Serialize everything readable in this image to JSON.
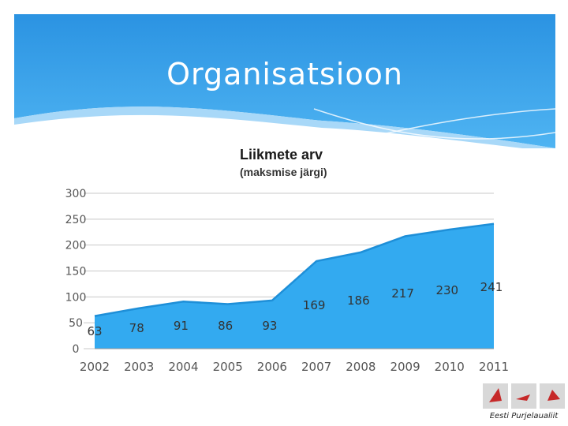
{
  "slide": {
    "title": "Organisatsioon"
  },
  "chart_data": {
    "type": "area",
    "title": "Liikmete arv",
    "subtitle": "(maksmise järgi)",
    "categories": [
      "2002",
      "2003",
      "2004",
      "2005",
      "2006",
      "2007",
      "2008",
      "2009",
      "2010",
      "2011"
    ],
    "values": [
      63,
      78,
      91,
      86,
      93,
      169,
      186,
      217,
      230,
      241
    ],
    "data_labels": [
      "63",
      "78",
      "91",
      "86",
      "93",
      "169",
      "186",
      "217",
      "230",
      "241"
    ],
    "y_ticks": [
      0,
      50,
      100,
      150,
      200,
      250,
      300
    ],
    "ylim": [
      0,
      300
    ],
    "grid": true,
    "xlabel": "",
    "ylabel": "",
    "colors": {
      "fill": "#33aaf0",
      "top": "#1e8fd8",
      "grid": "#c8c8c8",
      "header": "#2f9be6"
    }
  },
  "logo": {
    "text": "Eesti Purjelaualiit"
  }
}
